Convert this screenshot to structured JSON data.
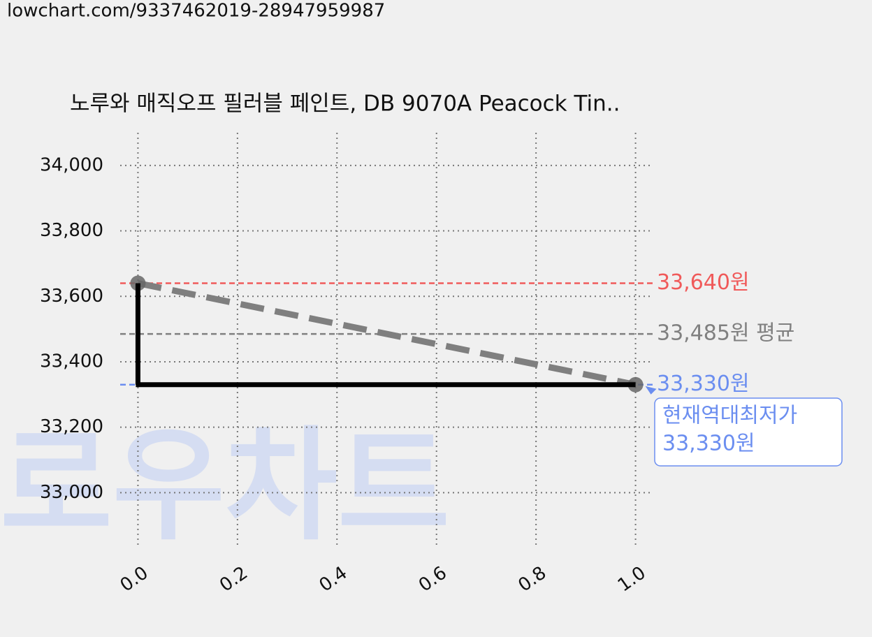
{
  "source": "lowchart.com/9337462019-28947959987",
  "watermark": "로우차트",
  "chart_data": {
    "type": "line",
    "title": "노루와 매직오프 필러블 페인트, DB 9070A Peacock Tin..",
    "x": [
      0,
      1
    ],
    "series": [
      {
        "color": "#7f7f7f",
        "style": "dashed",
        "markers": true,
        "values": [
          33640,
          33330
        ]
      },
      {
        "color": "#000000",
        "style": "step",
        "values": [
          33640,
          33330
        ]
      }
    ],
    "reference_lines": [
      {
        "value": 33640,
        "label": "33,640원",
        "color": "#f05a5a"
      },
      {
        "value": 33485,
        "label": "33,485원 평균",
        "color": "#808080"
      },
      {
        "value": 33330,
        "label": "33,330원",
        "color": "#6b8ef0"
      }
    ],
    "annotation": {
      "x": 1,
      "y": 33330,
      "lines": [
        "현재역대최저가",
        "33,330원"
      ],
      "color": "#6b8ef0"
    },
    "xlim": [
      -0.0357,
      1.0357
    ],
    "ylim": [
      32830,
      34100
    ],
    "xticks": [
      {
        "value": 0,
        "label": "0.0"
      },
      {
        "value": 0.2,
        "label": "0.2"
      },
      {
        "value": 0.4,
        "label": "0.4"
      },
      {
        "value": 0.6,
        "label": "0.6"
      },
      {
        "value": 0.8,
        "label": "0.8"
      },
      {
        "value": 1,
        "label": "1.0"
      }
    ],
    "yticks": [
      {
        "value": 33000,
        "label": "33,000"
      },
      {
        "value": 33200,
        "label": "33,200"
      },
      {
        "value": 33400,
        "label": "33,400"
      },
      {
        "value": 33600,
        "label": "33,600"
      },
      {
        "value": 33800,
        "label": "33,800"
      },
      {
        "value": 34000,
        "label": "34,000"
      }
    ],
    "grid": true
  }
}
